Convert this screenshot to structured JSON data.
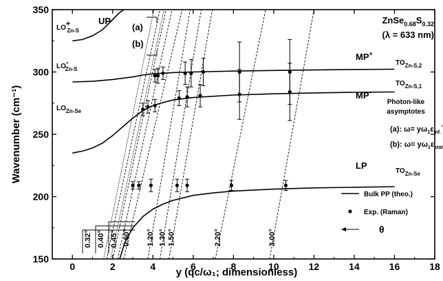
{
  "chart_data": {
    "type": "line",
    "title": "",
    "xlabel": "y (qc/ω₁; dimensionless)",
    "ylabel": "Wavenumber (cm⁻¹)",
    "xlim": [
      -1,
      18
    ],
    "ylim": [
      150,
      350
    ],
    "x_ticks": [
      0,
      2,
      4,
      6,
      8,
      10,
      12,
      14,
      16,
      18
    ],
    "y_ticks": [
      150,
      200,
      250,
      300,
      350
    ],
    "grid": false,
    "legend_position": "lower-right",
    "material": {
      "base": "ZnSe",
      "sub1": "0.68",
      "mid": "S",
      "sub2": "0.32"
    },
    "wavelength": "(λ = 633 nm)",
    "branch_labels": {
      "up": "UP",
      "mp_plus": "MP",
      "mp_minus": "MP",
      "lp": "LP"
    },
    "left_labels": [
      {
        "main": "LO",
        "sup": "+",
        "sub": "Zn-S"
      },
      {
        "main": "LO",
        "sup": "-",
        "sub": "Zn-S"
      },
      {
        "main": "LO",
        "sub": "Zn-Se"
      }
    ],
    "right_labels": [
      {
        "main": "TO",
        "sub": "Zn-S,2"
      },
      {
        "main": "TO",
        "sub": "Zn-S,1"
      },
      {
        "main": "TO",
        "sub": "Zn-Se"
      }
    ],
    "asymptote_labels": {
      "a": "(a)",
      "b": "(b)"
    },
    "asymptotes_text": {
      "title_line1": "Photon-like",
      "title_line2": "asymptotes",
      "a": {
        "prefix": "(a):  ω= yω",
        "sub1": "1",
        "eps": "ε",
        "sub2": "inf.",
        "sup": "-0.5"
      },
      "b": {
        "prefix": "(b):  ω= yω",
        "sub1": "1",
        "eps": "ε",
        "sub2": "stat.",
        "sup": "-0.5"
      }
    },
    "legend": {
      "line": "Bulk PP (theo.)",
      "marker": "Exp. (Raman)",
      "arrow": "θ"
    },
    "series": [
      {
        "name": "UP",
        "x": [
          0,
          0.5,
          1.0,
          1.5,
          2.0,
          2.3,
          2.55
        ],
        "y": [
          325,
          326,
          329,
          334,
          342,
          347,
          350
        ]
      },
      {
        "name": "MP+",
        "x": [
          0,
          1,
          2,
          3,
          3.5,
          4,
          5,
          6,
          8,
          10,
          12,
          14,
          16
        ],
        "y": [
          292,
          292.5,
          294,
          296,
          297.5,
          298.5,
          299.5,
          300,
          300.7,
          301.2,
          301.6,
          302,
          302.2
        ]
      },
      {
        "name": "MP-",
        "x": [
          0,
          0.5,
          1,
          1.5,
          2,
          2.5,
          3,
          3.5,
          4,
          4.5,
          5,
          6,
          8,
          10,
          12,
          14,
          16
        ],
        "y": [
          235,
          236.5,
          239,
          243,
          249,
          256,
          263,
          269,
          273,
          275.5,
          277.5,
          279.5,
          281.5,
          282.5,
          283.2,
          283.7,
          284
        ]
      },
      {
        "name": "LP",
        "x": [
          2.35,
          2.6,
          3.0,
          3.5,
          4,
          4.5,
          5,
          6,
          7,
          8,
          10,
          12,
          14,
          16
        ],
        "y": [
          150,
          163,
          175,
          184,
          190,
          194,
          197,
          201,
          203,
          204.5,
          206,
          207,
          207.5,
          208
        ]
      }
    ],
    "experimental": [
      {
        "x": 3.0,
        "y": 209,
        "err": 3
      },
      {
        "x": 3.3,
        "y": 209,
        "err": 3
      },
      {
        "x": 3.9,
        "y": 209,
        "err": 5
      },
      {
        "x": 5.2,
        "y": 209,
        "err": 5
      },
      {
        "x": 5.7,
        "y": 209,
        "err": 5
      },
      {
        "x": 7.9,
        "y": 209,
        "err": 4
      },
      {
        "x": 10.6,
        "y": 209,
        "err": 4
      },
      {
        "x": 3.5,
        "y": 270,
        "err": 5
      },
      {
        "x": 3.75,
        "y": 272,
        "err": 5
      },
      {
        "x": 4.1,
        "y": 273,
        "err": 5
      },
      {
        "x": 5.3,
        "y": 279,
        "err": 6
      },
      {
        "x": 5.7,
        "y": 280,
        "err": 8
      },
      {
        "x": 6.35,
        "y": 281,
        "err": 9
      },
      {
        "x": 8.3,
        "y": 282,
        "err": 20
      },
      {
        "x": 10.8,
        "y": 284,
        "err": 23
      },
      {
        "x": 4.1,
        "y": 297,
        "err": 5
      },
      {
        "x": 4.25,
        "y": 297,
        "err": 6
      },
      {
        "x": 4.5,
        "y": 299,
        "err": 5
      },
      {
        "x": 5.6,
        "y": 299,
        "err": 9
      },
      {
        "x": 5.9,
        "y": 299,
        "err": 11
      },
      {
        "x": 6.5,
        "y": 300,
        "err": 11
      },
      {
        "x": 8.3,
        "y": 300,
        "err": 24
      },
      {
        "x": 10.8,
        "y": 300,
        "err": 26
      }
    ],
    "angle_lines": [
      {
        "label": "0.32°",
        "x_at_150": 1.7,
        "x_at_350": 4.35
      },
      {
        "label": "0.40°",
        "x_at_150": 2.0,
        "x_at_350": 4.65
      },
      {
        "label": "0.45°",
        "x_at_150": 2.25,
        "x_at_350": 4.95
      },
      {
        "label": "0.60°",
        "x_at_150": 2.55,
        "x_at_350": 5.45
      },
      {
        "label": "1.20°",
        "x_at_150": 3.75,
        "x_at_350": 5.85
      },
      {
        "label": "1.30°",
        "x_at_150": 4.35,
        "x_at_350": 6.4
      },
      {
        "label": "1.50°",
        "x_at_150": 4.8,
        "x_at_350": 6.95
      },
      {
        "label": "2.20°",
        "x_at_150": 7.1,
        "x_at_350": 9.6
      },
      {
        "label": "3.00°",
        "x_at_150": 9.8,
        "x_at_350": 12.0
      }
    ],
    "asymptote_lines": [
      {
        "name": "(a)",
        "x_at_150": 1.9,
        "x_at_350": 4.55
      },
      {
        "name": "(b)",
        "x_at_150": 1.55,
        "x_at_350": 4.05
      }
    ]
  }
}
